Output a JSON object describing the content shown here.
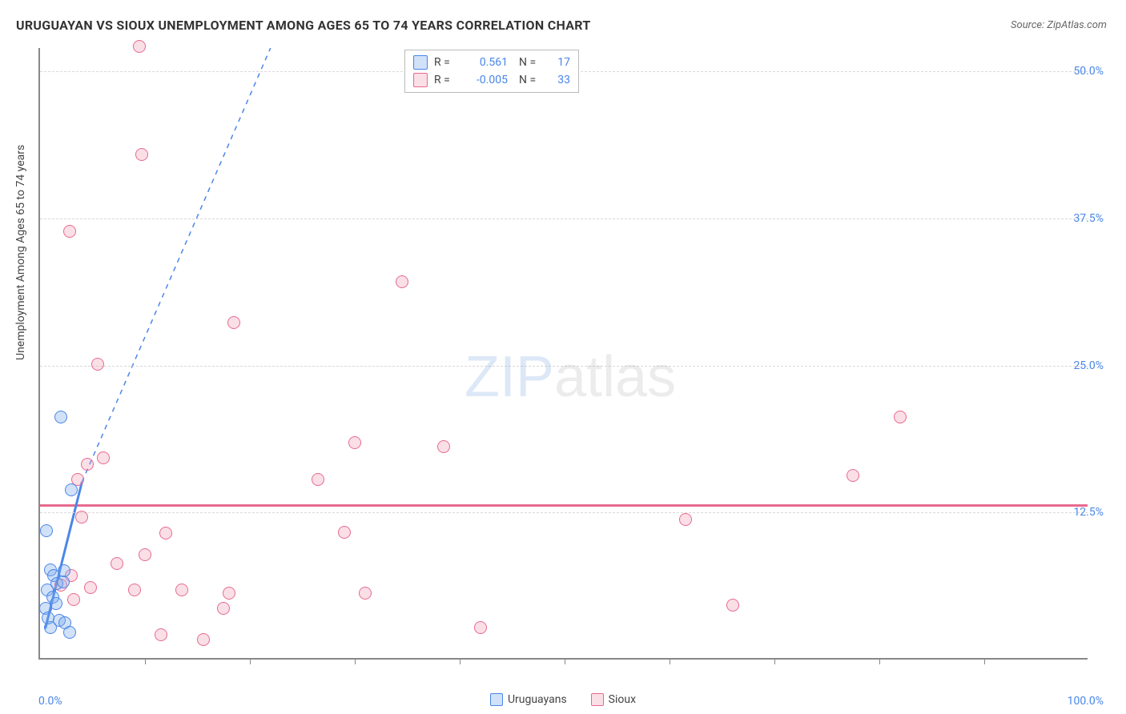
{
  "title": "URUGUAYAN VS SIOUX UNEMPLOYMENT AMONG AGES 65 TO 74 YEARS CORRELATION CHART",
  "source": "Source: ZipAtlas.com",
  "ylabel": "Unemployment Among Ages 65 to 74 years",
  "watermark_a": "ZIP",
  "watermark_b": "atlas",
  "chart": {
    "type": "scatter",
    "background_color": "#ffffff",
    "grid_color": "#d9d9d9",
    "axis_color": "#888888",
    "xlim": [
      0,
      100
    ],
    "ylim": [
      0,
      52
    ],
    "x_ticks_minor": [
      10,
      20,
      30,
      40,
      50,
      60,
      70,
      80,
      90
    ],
    "x_tick_labels": [
      {
        "pos": 0,
        "label": "0.0%"
      },
      {
        "pos": 100,
        "label": "100.0%"
      }
    ],
    "y_gridlines": [
      12.5,
      25.0,
      37.5,
      50.0
    ],
    "y_tick_labels": [
      {
        "pos": 12.5,
        "label": "12.5%"
      },
      {
        "pos": 25.0,
        "label": "25.0%"
      },
      {
        "pos": 37.5,
        "label": "37.5%"
      },
      {
        "pos": 50.0,
        "label": "50.0%"
      }
    ],
    "point_radius": 8,
    "point_border_width": 1.5,
    "series": {
      "uruguayans": {
        "label": "Uruguayans",
        "color_fill": "rgba(120,170,235,0.35)",
        "color_stroke": "#4a86e8",
        "R": "0.561",
        "N": "17",
        "trend": {
          "x1": 0.5,
          "y1": 2.5,
          "x2": 4.0,
          "y2": 15.0,
          "dash_ext_x": 22,
          "dash_ext_y": 52,
          "stroke_width": 3
        },
        "points": [
          {
            "x": 0.6,
            "y": 10.8
          },
          {
            "x": 2.0,
            "y": 20.5
          },
          {
            "x": 1.0,
            "y": 7.5
          },
          {
            "x": 1.3,
            "y": 7.0
          },
          {
            "x": 1.6,
            "y": 6.3
          },
          {
            "x": 2.2,
            "y": 6.5
          },
          {
            "x": 0.7,
            "y": 5.8
          },
          {
            "x": 1.2,
            "y": 5.2
          },
          {
            "x": 1.8,
            "y": 3.2
          },
          {
            "x": 2.4,
            "y": 3.0
          },
          {
            "x": 2.8,
            "y": 2.2
          },
          {
            "x": 1.0,
            "y": 2.6
          },
          {
            "x": 0.5,
            "y": 4.2
          },
          {
            "x": 2.3,
            "y": 7.4
          },
          {
            "x": 3.0,
            "y": 14.3
          },
          {
            "x": 1.5,
            "y": 4.6
          },
          {
            "x": 0.8,
            "y": 3.4
          }
        ]
      },
      "sioux": {
        "label": "Sioux",
        "color_fill": "rgba(240,150,175,0.30)",
        "color_stroke": "#e86a8f",
        "R": "-0.005",
        "N": "33",
        "trend": {
          "y": 13.0,
          "stroke_width": 3
        },
        "points": [
          {
            "x": 9.5,
            "y": 52.0
          },
          {
            "x": 9.7,
            "y": 42.8
          },
          {
            "x": 2.8,
            "y": 36.3
          },
          {
            "x": 5.5,
            "y": 25.0
          },
          {
            "x": 18.5,
            "y": 28.5
          },
          {
            "x": 34.5,
            "y": 32.0
          },
          {
            "x": 4.5,
            "y": 16.5
          },
          {
            "x": 3.6,
            "y": 15.2
          },
          {
            "x": 6.0,
            "y": 17.0
          },
          {
            "x": 30.0,
            "y": 18.3
          },
          {
            "x": 38.5,
            "y": 18.0
          },
          {
            "x": 82.0,
            "y": 20.5
          },
          {
            "x": 26.5,
            "y": 15.2
          },
          {
            "x": 77.5,
            "y": 15.5
          },
          {
            "x": 4.0,
            "y": 12.0
          },
          {
            "x": 61.5,
            "y": 11.8
          },
          {
            "x": 29.0,
            "y": 10.7
          },
          {
            "x": 12.0,
            "y": 10.6
          },
          {
            "x": 10.0,
            "y": 8.8
          },
          {
            "x": 7.3,
            "y": 8.0
          },
          {
            "x": 9.0,
            "y": 5.8
          },
          {
            "x": 13.5,
            "y": 5.8
          },
          {
            "x": 18.0,
            "y": 5.5
          },
          {
            "x": 17.5,
            "y": 4.2
          },
          {
            "x": 31.0,
            "y": 5.5
          },
          {
            "x": 42.0,
            "y": 2.6
          },
          {
            "x": 66.0,
            "y": 4.5
          },
          {
            "x": 11.5,
            "y": 2.0
          },
          {
            "x": 15.6,
            "y": 1.6
          },
          {
            "x": 2.0,
            "y": 6.2
          },
          {
            "x": 3.2,
            "y": 5.0
          },
          {
            "x": 3.0,
            "y": 7.0
          },
          {
            "x": 4.8,
            "y": 6.0
          }
        ]
      }
    },
    "legend_top": {
      "R_label": "R =",
      "N_label": "N ="
    }
  }
}
